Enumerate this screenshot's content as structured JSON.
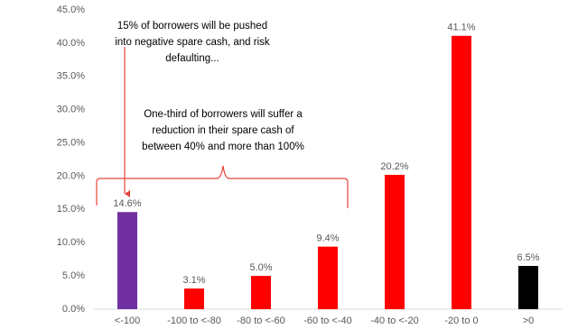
{
  "chart_data": {
    "type": "bar",
    "categories": [
      "<-100",
      "-100 to <-80",
      "-80 to <-60",
      "-60 to <-40",
      "-40 to <-20",
      "-20 to 0",
      ">0"
    ],
    "values": [
      14.6,
      3.1,
      5.0,
      9.4,
      20.2,
      41.1,
      6.5
    ],
    "value_labels": [
      "14.6%",
      "3.1%",
      "5.0%",
      "9.4%",
      "20.2%",
      "41.1%",
      "6.5%"
    ],
    "colors": [
      "#7030a0",
      "#ff0000",
      "#ff0000",
      "#ff0000",
      "#ff0000",
      "#ff0000",
      "#000000"
    ],
    "ylim": [
      0,
      45
    ],
    "yticks": [
      {
        "value": 0,
        "label": "0.0%"
      },
      {
        "value": 5,
        "label": "5.0%"
      },
      {
        "value": 10,
        "label": "10.0%"
      },
      {
        "value": 15,
        "label": "15.0%"
      },
      {
        "value": 20,
        "label": "20.0%"
      },
      {
        "value": 25,
        "label": "25.0%"
      },
      {
        "value": 30,
        "label": "30.0%"
      },
      {
        "value": 35,
        "label": "35.0%"
      },
      {
        "value": 40,
        "label": "40.0%"
      },
      {
        "value": 45,
        "label": "45.0%"
      }
    ],
    "grid": false,
    "annotations": [
      [
        "15% of borrowers will be pushed",
        "into negative spare cash, and risk",
        "defaulting..."
      ],
      [
        "One-third of borrowers will suffer a",
        "reduction in their spare cash of",
        "between 40% and more than 100%"
      ]
    ]
  }
}
